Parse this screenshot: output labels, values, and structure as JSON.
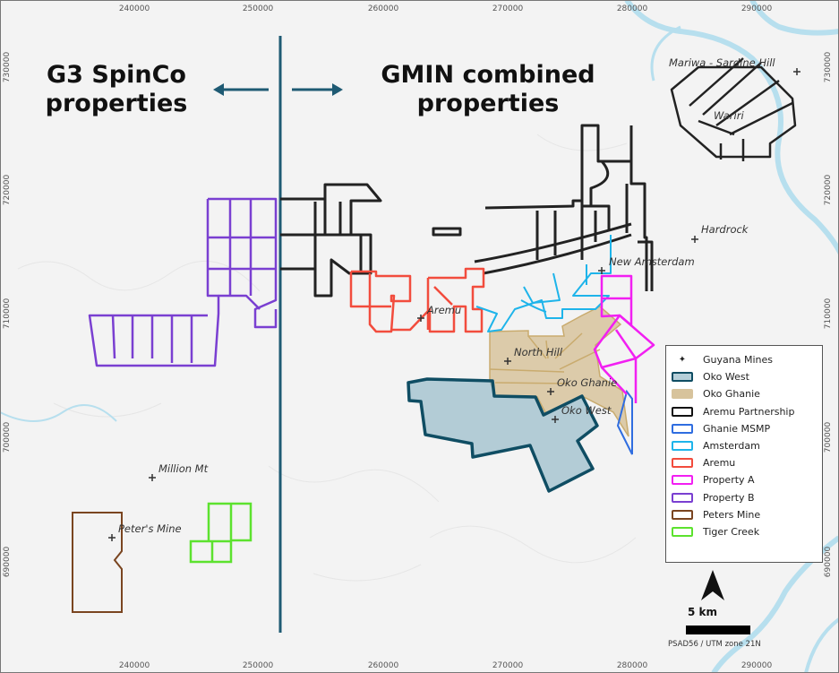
{
  "headings": {
    "left": "G3 SpinCo properties",
    "right": "GMIN combined properties"
  },
  "axes": {
    "easting_ticks": [
      "240000",
      "250000",
      "260000",
      "270000",
      "280000",
      "290000"
    ],
    "northing_ticks": [
      "730000",
      "720000",
      "710000",
      "700000",
      "690000"
    ]
  },
  "places": [
    {
      "name": "Mariwa - Sardine Hill"
    },
    {
      "name": "Wariri"
    },
    {
      "name": "Hardrock"
    },
    {
      "name": "New Amsterdam"
    },
    {
      "name": "Aremu"
    },
    {
      "name": "North Hill"
    },
    {
      "name": "Oko Ghanie"
    },
    {
      "name": "Oko West"
    },
    {
      "name": "Million Mt"
    },
    {
      "name": "Peter's Mine"
    }
  ],
  "legend": {
    "items": [
      {
        "label": "Guyana Mines",
        "symbol": "cross-icon"
      },
      {
        "label": "Oko West",
        "stroke": "#0f4d63",
        "fill": "#b5cfd9"
      },
      {
        "label": "Oko Ghanie",
        "stroke": "#d7c39c",
        "fill": "#d7c39c"
      },
      {
        "label": "Aremu Partnership",
        "stroke": "#111111",
        "fill": "none"
      },
      {
        "label": "Ghanie MSMP",
        "stroke": "#2f6de0",
        "fill": "none"
      },
      {
        "label": "Amsterdam",
        "stroke": "#1eb4ea",
        "fill": "none"
      },
      {
        "label": "Aremu",
        "stroke": "#f24c3d",
        "fill": "none"
      },
      {
        "label": "Property A",
        "stroke": "#f21ff2",
        "fill": "none"
      },
      {
        "label": "Property B",
        "stroke": "#7a3fd1",
        "fill": "none"
      },
      {
        "label": "Peters Mine",
        "stroke": "#7a4520",
        "fill": "none"
      },
      {
        "label": "Tiger Creek",
        "stroke": "#5ce22e",
        "fill": "none"
      }
    ]
  },
  "scale": {
    "label": "5 km"
  },
  "crs": "PSAD56 / UTM zone 21N",
  "colors": {
    "divider": "#1e5a73",
    "river": "#b7dfee"
  }
}
